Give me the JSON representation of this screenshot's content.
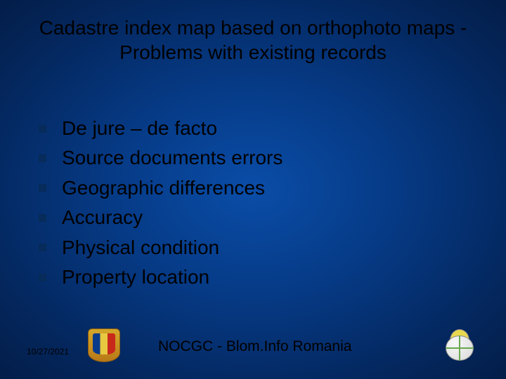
{
  "title": "Cadastre index map based on orthophoto maps - Problems with existing records",
  "bullets": [
    "De jure – de facto",
    "Source documents errors",
    "Geographic differences",
    "Accuracy",
    "Physical condition",
    "Property location"
  ],
  "footer": {
    "date": "10/27/2021",
    "center": "NOCGC   -   Blom.Info Romania"
  },
  "style": {
    "slide_width": 720,
    "slide_height": 540,
    "background_gradient": [
      "#0a4da8",
      "#063a85",
      "#042860",
      "#031d48"
    ],
    "title_fontsize": 28,
    "title_color": "#000000",
    "body_fontsize": 28,
    "body_color": "#000000",
    "bullet_color": "#072b5a",
    "bullet_size": 11,
    "date_fontsize": 12,
    "footer_fontsize": 21,
    "font_family": "Verdana"
  }
}
